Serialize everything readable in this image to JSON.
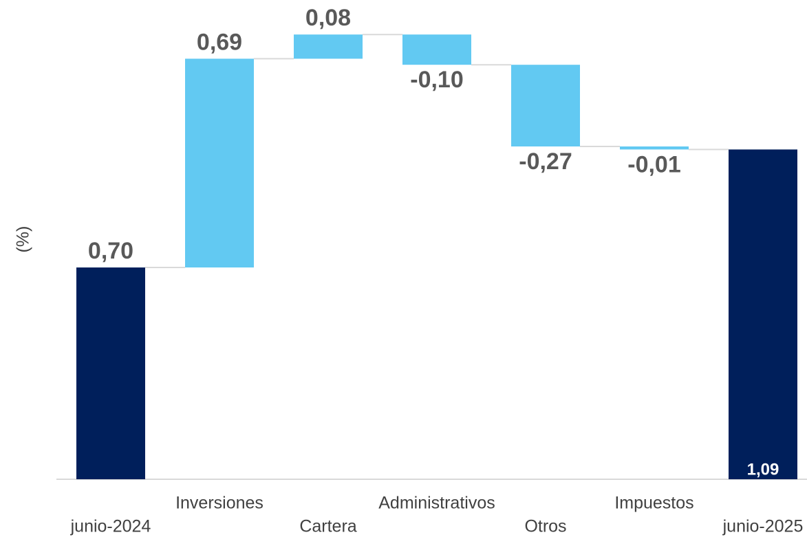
{
  "chart_data": {
    "type": "waterfall",
    "y_label": "(%)",
    "categories": [
      "junio-2024",
      "Inversiones",
      "Cartera",
      "Administrativos",
      "Otros",
      "Impuestos",
      "junio-2025"
    ],
    "values": [
      0.7,
      0.69,
      0.08,
      -0.1,
      -0.27,
      -0.01,
      1.09
    ],
    "value_labels": [
      "0,70",
      "0,69",
      "0,08",
      "-0,10",
      "-0,27",
      "-0,01",
      "1,09"
    ],
    "totals": [
      true,
      false,
      false,
      false,
      false,
      false,
      true
    ],
    "total_color": "#001f5b",
    "step_color": "#62c9f2",
    "ylim": [
      0,
      1.5
    ]
  }
}
